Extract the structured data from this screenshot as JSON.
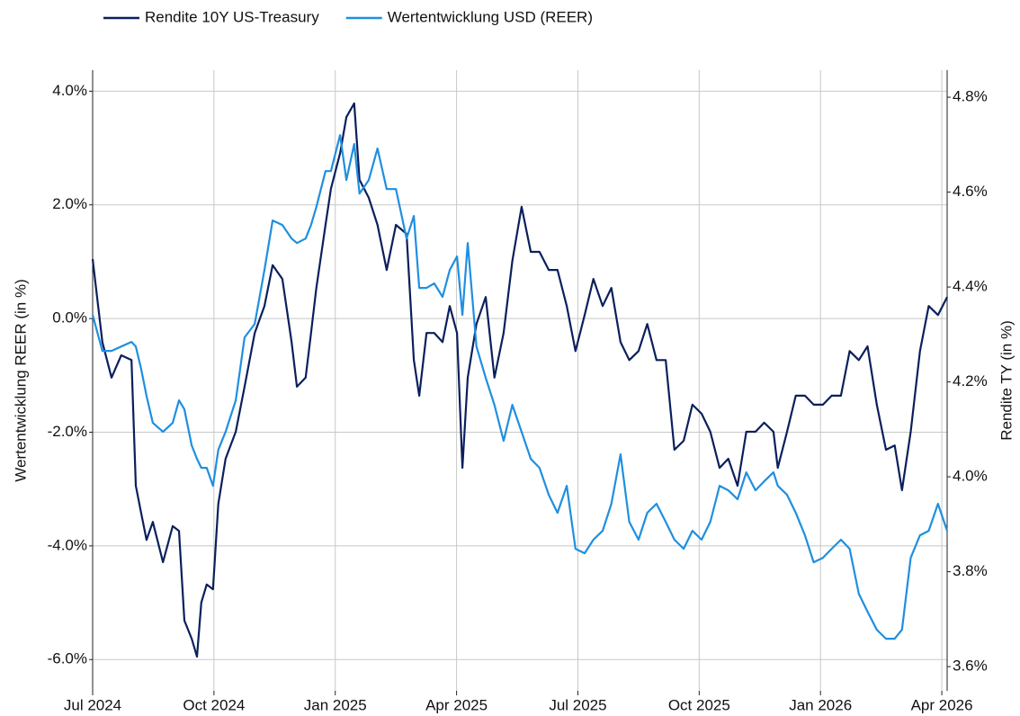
{
  "chart_data": {
    "type": "line",
    "y_label": "Wertentwicklung REER (in %)",
    "y2_label": "Rendite TY (in %)",
    "legend": "top-left",
    "grid": true,
    "xlim": [
      2024.5,
      2026.261
    ],
    "xticks": [
      {
        "value": 2024.5,
        "label": "Jul 2024"
      },
      {
        "value": 2024.75,
        "label": "Oct 2024"
      },
      {
        "value": 2025,
        "label": "Jan 2025"
      },
      {
        "value": 2025.25,
        "label": "Apr 2025"
      },
      {
        "value": 2025.5,
        "label": "Jul 2025"
      },
      {
        "value": 2025.75,
        "label": "Oct 2025"
      },
      {
        "value": 2026,
        "label": "Jan 2026"
      },
      {
        "value": 2026.25,
        "label": "Apr 2026"
      }
    ],
    "ylim": [
      -6.55,
      4.37
    ],
    "yticks": [
      {
        "value": 4,
        "label": "4.0%"
      },
      {
        "value": 2,
        "label": "2.0%"
      },
      {
        "value": 0,
        "label": "0.0%"
      },
      {
        "value": -2,
        "label": "-2.0%"
      },
      {
        "value": -4,
        "label": "-4.0%"
      },
      {
        "value": -6,
        "label": "-6.0%"
      }
    ],
    "y2lim": [
      3.549,
      4.857
    ],
    "y2ticks": [
      {
        "value": 4.8,
        "label": "4.8%"
      },
      {
        "value": 4.6,
        "label": "4.6%"
      },
      {
        "value": 4.4,
        "label": "4.4%"
      },
      {
        "value": 4.2,
        "label": "4.2%"
      },
      {
        "value": 4.0,
        "label": "4.0%"
      },
      {
        "value": 3.8,
        "label": "3.8%"
      },
      {
        "value": 3.6,
        "label": "3.6%"
      }
    ],
    "x": [
      2024.5,
      2024.52,
      2024.539,
      2024.559,
      2024.58,
      2024.589,
      2024.6,
      2024.611,
      2024.624,
      2024.645,
      2024.665,
      2024.678,
      2024.689,
      2024.704,
      2024.715,
      2024.724,
      2024.735,
      2024.748,
      2024.759,
      2024.774,
      2024.795,
      2024.813,
      2024.834,
      2024.854,
      2024.871,
      2024.891,
      2024.91,
      2024.921,
      2024.939,
      2024.95,
      2024.961,
      2024.98,
      2024.991,
      2025.01,
      2025.023,
      2025.039,
      2025.05,
      2025.069,
      2025.087,
      2025.106,
      2025.125,
      2025.147,
      2025.162,
      2025.173,
      2025.188,
      2025.204,
      2025.221,
      2025.236,
      2025.251,
      2025.262,
      2025.273,
      2025.291,
      2025.31,
      2025.328,
      2025.347,
      2025.365,
      2025.384,
      2025.403,
      2025.421,
      2025.44,
      2025.458,
      2025.477,
      2025.495,
      2025.514,
      2025.532,
      2025.551,
      2025.569,
      2025.588,
      2025.606,
      2025.625,
      2025.643,
      2025.662,
      2025.681,
      2025.699,
      2025.718,
      2025.736,
      2025.755,
      2025.773,
      2025.792,
      2025.81,
      2025.829,
      2025.847,
      2025.866,
      2025.884,
      2025.903,
      2025.912,
      2025.931,
      2025.949,
      2025.968,
      2025.986,
      2026.005,
      2026.023,
      2026.042,
      2026.06,
      2026.079,
      2026.097,
      2026.116,
      2026.135,
      2026.153,
      2026.168,
      2026.186,
      2026.205,
      2026.223,
      2026.242,
      2026.261
    ],
    "series": [
      {
        "name": "Rendite 10Y US-Treasury",
        "color": "#0b1f5c",
        "axis": "y2",
        "values": [
          4.459,
          4.284,
          4.209,
          4.256,
          4.246,
          3.981,
          3.924,
          3.867,
          3.905,
          3.82,
          3.896,
          3.886,
          3.697,
          3.659,
          3.621,
          3.735,
          3.773,
          3.763,
          3.943,
          4.038,
          4.095,
          4.19,
          4.303,
          4.36,
          4.446,
          4.417,
          4.284,
          4.19,
          4.209,
          4.303,
          4.398,
          4.531,
          4.607,
          4.682,
          4.758,
          4.787,
          4.626,
          4.588,
          4.531,
          4.436,
          4.531,
          4.512,
          4.246,
          4.171,
          4.303,
          4.303,
          4.284,
          4.36,
          4.303,
          4.019,
          4.209,
          4.322,
          4.379,
          4.209,
          4.303,
          4.455,
          4.569,
          4.474,
          4.474,
          4.436,
          4.436,
          4.36,
          4.265,
          4.341,
          4.417,
          4.36,
          4.398,
          4.284,
          4.246,
          4.265,
          4.322,
          4.246,
          4.246,
          4.057,
          4.076,
          4.152,
          4.133,
          4.095,
          4.019,
          4.038,
          3.981,
          4.095,
          4.095,
          4.114,
          4.095,
          4.019,
          4.095,
          4.171,
          4.171,
          4.152,
          4.152,
          4.171,
          4.171,
          4.265,
          4.246,
          4.275,
          4.152,
          4.057,
          4.066,
          3.972,
          4.095,
          4.265,
          4.36,
          4.341,
          4.379
        ]
      },
      {
        "name": "Wertentwicklung USD (REER)",
        "color": "#1f8fe0",
        "values": [
          0.063,
          -0.57,
          -0.57,
          -0.491,
          -0.411,
          -0.491,
          -0.886,
          -1.361,
          -1.835,
          -1.994,
          -1.835,
          -1.44,
          -1.598,
          -2.231,
          -2.468,
          -2.627,
          -2.627,
          -2.943,
          -2.31,
          -1.994,
          -1.44,
          -0.332,
          -0.095,
          0.854,
          1.725,
          1.646,
          1.408,
          1.329,
          1.408,
          1.646,
          1.962,
          2.595,
          2.595,
          3.228,
          2.437,
          3.07,
          2.199,
          2.437,
          2.991,
          2.278,
          2.278,
          1.408,
          1.804,
          0.538,
          0.538,
          0.617,
          0.38,
          0.854,
          1.092,
          0.063,
          1.329,
          -0.491,
          -1.044,
          -1.519,
          -2.152,
          -1.519,
          -1.994,
          -2.468,
          -2.627,
          -3.101,
          -3.418,
          -2.943,
          -4.051,
          -4.13,
          -3.892,
          -3.734,
          -3.259,
          -2.389,
          -3.576,
          -3.892,
          -3.418,
          -3.259,
          -3.576,
          -3.892,
          -4.051,
          -3.734,
          -3.892,
          -3.576,
          -2.943,
          -3.022,
          -3.18,
          -2.706,
          -3.022,
          -2.864,
          -2.706,
          -2.943,
          -3.101,
          -3.418,
          -3.813,
          -4.288,
          -4.209,
          -4.051,
          -3.892,
          -4.051,
          -4.842,
          -5.158,
          -5.475,
          -5.633,
          -5.633,
          -5.475,
          -4.209,
          -3.813,
          -3.734,
          -3.259,
          -3.734
        ]
      }
    ]
  }
}
